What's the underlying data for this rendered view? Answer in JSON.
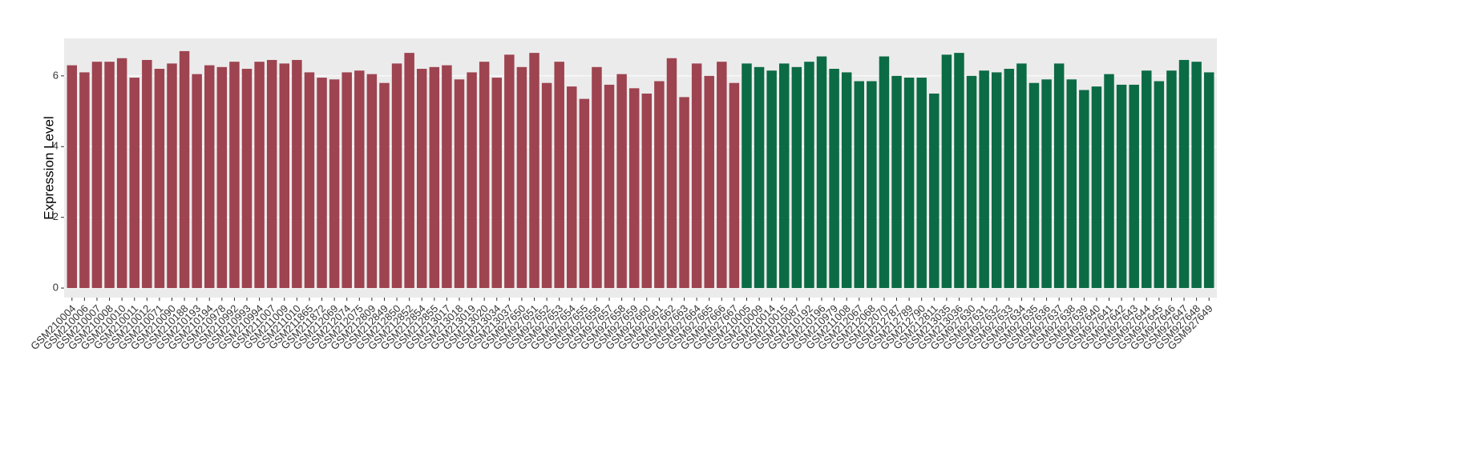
{
  "chart_data": {
    "type": "bar",
    "ylabel": "Expression Level",
    "categories": [
      "GSM210004",
      "GSM210006",
      "GSM210007",
      "GSM210008",
      "GSM210010",
      "GSM210011",
      "GSM210012",
      "GSM210071",
      "GSM210090",
      "GSM210188",
      "GSM210193",
      "GSM210194",
      "GSM210978",
      "GSM210992",
      "GSM210993",
      "GSM210994",
      "GSM211007",
      "GSM211009",
      "GSM211010",
      "GSM211865",
      "GSM211872",
      "GSM212069",
      "GSM212074",
      "GSM212075",
      "GSM212809",
      "GSM212849",
      "GSM212850",
      "GSM212852",
      "GSM212854",
      "GSM212855",
      "GSM213017",
      "GSM213018",
      "GSM213019",
      "GSM213020",
      "GSM213034",
      "GSM213037",
      "GSM927650",
      "GSM927651",
      "GSM927652",
      "GSM927653",
      "GSM927654",
      "GSM927655",
      "GSM927656",
      "GSM927657",
      "GSM927658",
      "GSM927659",
      "GSM927660",
      "GSM927661",
      "GSM927662",
      "GSM927663",
      "GSM927664",
      "GSM927665",
      "GSM927666",
      "GSM927667",
      "GSM210005",
      "GSM210009",
      "GSM210014",
      "GSM210015",
      "GSM210087",
      "GSM210192",
      "GSM210196",
      "GSM210979",
      "GSM211008",
      "GSM212067",
      "GSM212068",
      "GSM212070",
      "GSM212787",
      "GSM212789",
      "GSM212790",
      "GSM212811",
      "GSM213035",
      "GSM213036",
      "GSM927630",
      "GSM927631",
      "GSM927632",
      "GSM927633",
      "GSM927634",
      "GSM927635",
      "GSM927636",
      "GSM927637",
      "GSM927638",
      "GSM927639",
      "GSM927640",
      "GSM927641",
      "GSM927642",
      "GSM927643",
      "GSM927644",
      "GSM927645",
      "GSM927646",
      "GSM927647",
      "GSM927648",
      "GSM927649"
    ],
    "values": [
      6.3,
      6.1,
      6.4,
      6.4,
      6.5,
      5.95,
      6.45,
      6.2,
      6.35,
      6.7,
      6.05,
      6.3,
      6.25,
      6.4,
      6.2,
      6.4,
      6.45,
      6.35,
      6.45,
      6.1,
      5.95,
      5.9,
      6.1,
      6.15,
      6.05,
      5.8,
      6.35,
      6.65,
      6.2,
      6.25,
      6.3,
      5.9,
      6.1,
      6.4,
      5.95,
      6.6,
      6.25,
      6.65,
      5.8,
      6.4,
      5.7,
      5.35,
      6.25,
      5.75,
      6.05,
      5.65,
      5.5,
      5.85,
      6.5,
      5.4,
      6.35,
      6.0,
      6.4,
      5.8,
      6.35,
      6.25,
      6.15,
      6.35,
      6.25,
      6.4,
      6.55,
      6.2,
      6.1,
      5.85,
      5.85,
      6.55,
      6.0,
      5.95,
      5.95,
      5.5,
      6.6,
      6.65,
      6.0,
      6.15,
      6.1,
      6.2,
      6.35,
      5.8,
      5.9,
      6.35,
      5.9,
      5.6,
      5.7,
      6.05,
      5.75,
      5.75,
      6.15,
      5.85,
      6.15,
      6.45,
      6.4,
      6.1
    ],
    "colors": [
      "#9e4350",
      "#9e4350",
      "#9e4350",
      "#9e4350",
      "#9e4350",
      "#9e4350",
      "#9e4350",
      "#9e4350",
      "#9e4350",
      "#9e4350",
      "#9e4350",
      "#9e4350",
      "#9e4350",
      "#9e4350",
      "#9e4350",
      "#9e4350",
      "#9e4350",
      "#9e4350",
      "#9e4350",
      "#9e4350",
      "#9e4350",
      "#9e4350",
      "#9e4350",
      "#9e4350",
      "#9e4350",
      "#9e4350",
      "#9e4350",
      "#9e4350",
      "#9e4350",
      "#9e4350",
      "#9e4350",
      "#9e4350",
      "#9e4350",
      "#9e4350",
      "#9e4350",
      "#9e4350",
      "#9e4350",
      "#9e4350",
      "#9e4350",
      "#9e4350",
      "#9e4350",
      "#9e4350",
      "#9e4350",
      "#9e4350",
      "#9e4350",
      "#9e4350",
      "#9e4350",
      "#9e4350",
      "#9e4350",
      "#9e4350",
      "#9e4350",
      "#9e4350",
      "#9e4350",
      "#9e4350",
      "#0b6b45",
      "#0b6b45",
      "#0b6b45",
      "#0b6b45",
      "#0b6b45",
      "#0b6b45",
      "#0b6b45",
      "#0b6b45",
      "#0b6b45",
      "#0b6b45",
      "#0b6b45",
      "#0b6b45",
      "#0b6b45",
      "#0b6b45",
      "#0b6b45",
      "#0b6b45",
      "#0b6b45",
      "#0b6b45",
      "#0b6b45",
      "#0b6b45",
      "#0b6b45",
      "#0b6b45",
      "#0b6b45",
      "#0b6b45",
      "#0b6b45",
      "#0b6b45",
      "#0b6b45",
      "#0b6b45",
      "#0b6b45",
      "#0b6b45",
      "#0b6b45",
      "#0b6b45",
      "#0b6b45",
      "#0b6b45",
      "#0b6b45",
      "#0b6b45",
      "#0b6b45",
      "#0b6b45"
    ],
    "ylim": [
      -0.27,
      7.06
    ],
    "yticks": [
      0,
      2,
      4,
      6
    ],
    "grid": true
  }
}
